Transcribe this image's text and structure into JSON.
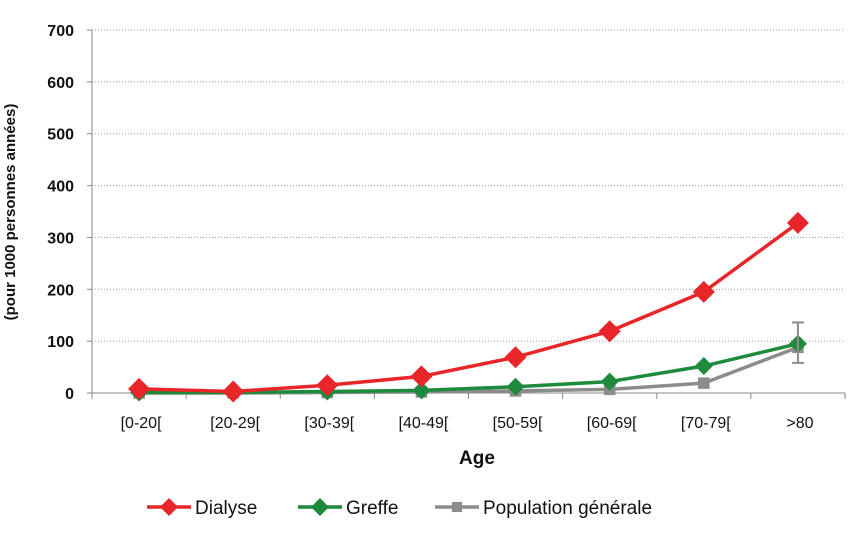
{
  "chart_data": {
    "type": "line",
    "title": "",
    "xlabel": "Age",
    "ylabel": "(pour 1000 personnes années)",
    "categories": [
      "[0-20[",
      "[20-29[",
      "[30-39[",
      "[40-49[",
      "[50-59[",
      "[60-69[",
      "[70-79[",
      ">80"
    ],
    "ylim": [
      0,
      700
    ],
    "yticks": [
      0,
      100,
      200,
      300,
      400,
      500,
      600,
      700
    ],
    "grid": "horizontal dotted",
    "legend_position": "bottom",
    "series": [
      {
        "name": "Dialyse",
        "color": "#e8262a",
        "marker": "diamond",
        "values": [
          8,
          3,
          15,
          32,
          69,
          119,
          195,
          328
        ]
      },
      {
        "name": "Greffe",
        "color": "#1e8a3c",
        "marker": "diamond",
        "values": [
          1,
          1,
          3,
          5,
          12,
          22,
          52,
          95
        ]
      },
      {
        "name": "Population générale",
        "color": "#8c8c8c",
        "marker": "square",
        "values": [
          0,
          0,
          1,
          2,
          4,
          7,
          19,
          88
        ],
        "error_last": [
          58,
          136
        ]
      }
    ]
  }
}
